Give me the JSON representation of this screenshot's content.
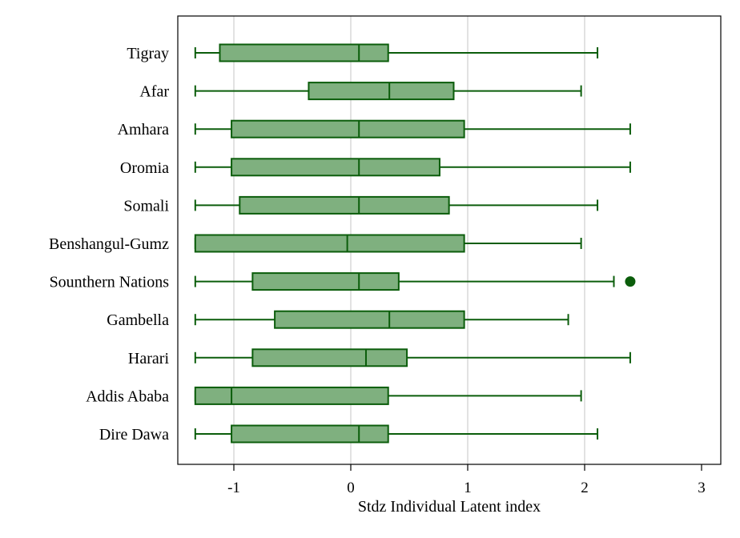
{
  "chart_data": {
    "type": "boxplot",
    "orientation": "horizontal",
    "title": "",
    "xlabel": "Stdz Individual Latent index",
    "ylabel": "",
    "xlim": [
      -1.5,
      3.0
    ],
    "xticks": [
      -1,
      0,
      1,
      2,
      3
    ],
    "xtick_labels": [
      "-1",
      "0",
      "1",
      "2",
      "3"
    ],
    "grid": "vertical",
    "legend": "none",
    "colors": {
      "box_fill": "#7fb07f",
      "line": "#0b5d0b",
      "grid": "#d9d9d9",
      "axis": "#000000"
    },
    "categories": [
      "Tigray",
      "Afar",
      "Amhara",
      "Oromia",
      "Somali",
      "Benshangul-Gumz",
      "Sounthern Nations",
      "Gambella",
      "Harari",
      "Addis Ababa",
      "Dire Dawa"
    ],
    "boxes": [
      {
        "label": "Tigray",
        "whisker_low": -1.33,
        "q1": -1.12,
        "median": 0.07,
        "q3": 0.32,
        "whisker_high": 2.11,
        "outliers": []
      },
      {
        "label": "Afar",
        "whisker_low": -1.33,
        "q1": -0.36,
        "median": 0.33,
        "q3": 0.88,
        "whisker_high": 1.97,
        "outliers": []
      },
      {
        "label": "Amhara",
        "whisker_low": -1.33,
        "q1": -1.02,
        "median": 0.07,
        "q3": 0.97,
        "whisker_high": 2.39,
        "outliers": []
      },
      {
        "label": "Oromia",
        "whisker_low": -1.33,
        "q1": -1.02,
        "median": 0.07,
        "q3": 0.76,
        "whisker_high": 2.39,
        "outliers": []
      },
      {
        "label": "Somali",
        "whisker_low": -1.33,
        "q1": -0.95,
        "median": 0.07,
        "q3": 0.84,
        "whisker_high": 2.11,
        "outliers": []
      },
      {
        "label": "Benshangul-Gumz",
        "whisker_low": -1.33,
        "q1": -1.33,
        "median": -0.03,
        "q3": 0.97,
        "whisker_high": 1.97,
        "outliers": []
      },
      {
        "label": "Sounthern Nations",
        "whisker_low": -1.33,
        "q1": -0.84,
        "median": 0.07,
        "q3": 0.41,
        "whisker_high": 2.25,
        "outliers": [
          2.39
        ]
      },
      {
        "label": "Gambella",
        "whisker_low": -1.33,
        "q1": -0.65,
        "median": 0.33,
        "q3": 0.97,
        "whisker_high": 1.86,
        "outliers": []
      },
      {
        "label": "Harari",
        "whisker_low": -1.33,
        "q1": -0.84,
        "median": 0.13,
        "q3": 0.48,
        "whisker_high": 2.39,
        "outliers": []
      },
      {
        "label": "Addis Ababa",
        "whisker_low": -1.33,
        "q1": -1.33,
        "median": -1.02,
        "q3": 0.32,
        "whisker_high": 1.97,
        "outliers": []
      },
      {
        "label": "Dire Dawa",
        "whisker_low": -1.33,
        "q1": -1.02,
        "median": 0.07,
        "q3": 0.32,
        "whisker_high": 2.11,
        "outliers": []
      }
    ]
  }
}
